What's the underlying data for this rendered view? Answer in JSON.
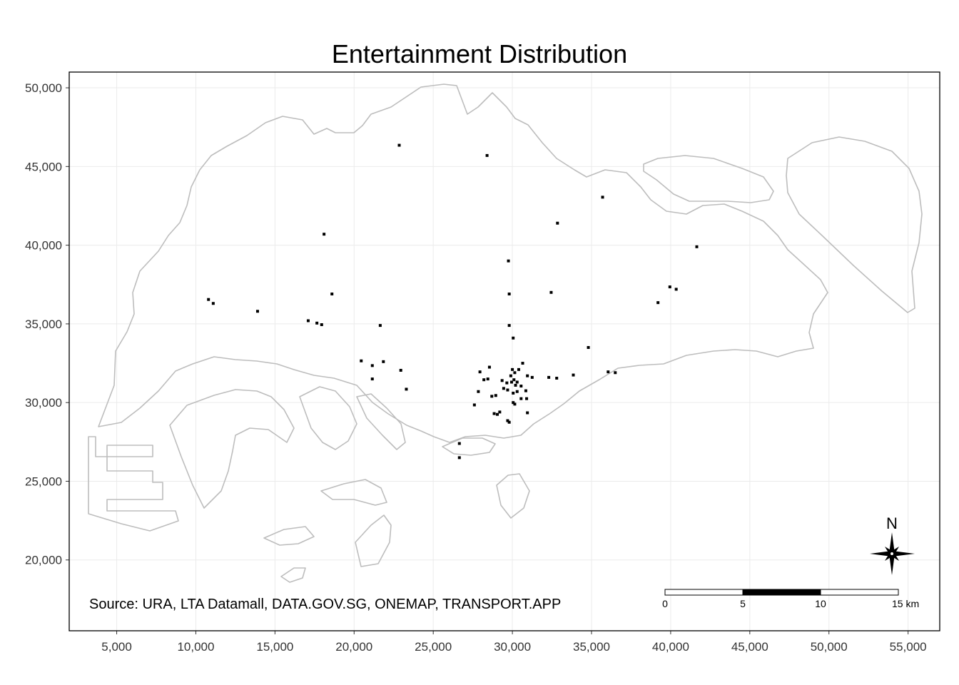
{
  "title": "Entertainment Distribution",
  "source_text": "Source: URA, LTA Datamall, DATA.GOV.SG, ONEMAP, TRANSPORT.APP",
  "north_label": "N",
  "scale_bar": {
    "labels": [
      "0",
      "5",
      "10",
      "15 km"
    ]
  },
  "colors": {
    "coast": "#bdbdbd",
    "points": "#000000",
    "grid": "#ebebeb",
    "frame": "#000000"
  },
  "chart_data": {
    "type": "scatter",
    "title": "Entertainment Distribution",
    "xlabel": "",
    "ylabel": "",
    "xlim": [
      2000,
      57000
    ],
    "ylim": [
      15500,
      51000
    ],
    "grid": true,
    "x_ticks": [
      5000,
      10000,
      15000,
      20000,
      25000,
      30000,
      35000,
      40000,
      45000,
      50000,
      55000
    ],
    "y_ticks": [
      20000,
      25000,
      30000,
      35000,
      40000,
      45000,
      50000
    ],
    "x_tick_labels": [
      "5,000",
      "10,000",
      "15,000",
      "20,000",
      "25,000",
      "30,000",
      "35,000",
      "40,000",
      "45,000",
      "50,000",
      "55,000"
    ],
    "y_tick_labels": [
      "20,000",
      "25,000",
      "30,000",
      "35,000",
      "40,000",
      "45,000",
      "50,000"
    ],
    "points": [
      [
        22850,
        46350
      ],
      [
        28400,
        45700
      ],
      [
        35700,
        43050
      ],
      [
        32850,
        41400
      ],
      [
        18100,
        40700
      ],
      [
        29750,
        39000
      ],
      [
        41650,
        39900
      ],
      [
        10800,
        36550
      ],
      [
        11100,
        36300
      ],
      [
        13900,
        35800
      ],
      [
        17100,
        35200
      ],
      [
        17650,
        35050
      ],
      [
        17950,
        34950
      ],
      [
        18600,
        36900
      ],
      [
        21650,
        34900
      ],
      [
        29800,
        36900
      ],
      [
        32450,
        37000
      ],
      [
        39200,
        36350
      ],
      [
        39950,
        37350
      ],
      [
        40350,
        37200
      ],
      [
        29800,
        34900
      ],
      [
        30050,
        34100
      ],
      [
        34800,
        33500
      ],
      [
        20450,
        32650
      ],
      [
        21150,
        32350
      ],
      [
        21850,
        32600
      ],
      [
        22950,
        32050
      ],
      [
        21150,
        31500
      ],
      [
        23300,
        30850
      ],
      [
        28550,
        32250
      ],
      [
        27950,
        31950
      ],
      [
        28200,
        31450
      ],
      [
        28450,
        31500
      ],
      [
        29350,
        31400
      ],
      [
        29650,
        31250
      ],
      [
        29900,
        31700
      ],
      [
        30000,
        32100
      ],
      [
        30150,
        31900
      ],
      [
        30400,
        32100
      ],
      [
        30650,
        32500
      ],
      [
        30100,
        31450
      ],
      [
        30300,
        31300
      ],
      [
        30550,
        31050
      ],
      [
        30950,
        31700
      ],
      [
        31250,
        31600
      ],
      [
        29450,
        30900
      ],
      [
        29700,
        30800
      ],
      [
        30050,
        30600
      ],
      [
        30300,
        30700
      ],
      [
        30850,
        30750
      ],
      [
        28950,
        30450
      ],
      [
        28700,
        30400
      ],
      [
        27850,
        30700
      ],
      [
        27600,
        29850
      ],
      [
        30050,
        30000
      ],
      [
        30150,
        29900
      ],
      [
        30550,
        30250
      ],
      [
        30900,
        30250
      ],
      [
        28850,
        29300
      ],
      [
        29200,
        29400
      ],
      [
        29050,
        29250
      ],
      [
        29700,
        28850
      ],
      [
        29800,
        28750
      ],
      [
        30950,
        29350
      ],
      [
        32300,
        31600
      ],
      [
        32800,
        31550
      ],
      [
        33850,
        31750
      ],
      [
        36050,
        31950
      ],
      [
        36500,
        31900
      ],
      [
        26650,
        27400
      ],
      [
        26650,
        26500
      ],
      [
        30200,
        31100
      ],
      [
        29950,
        31300
      ]
    ]
  }
}
